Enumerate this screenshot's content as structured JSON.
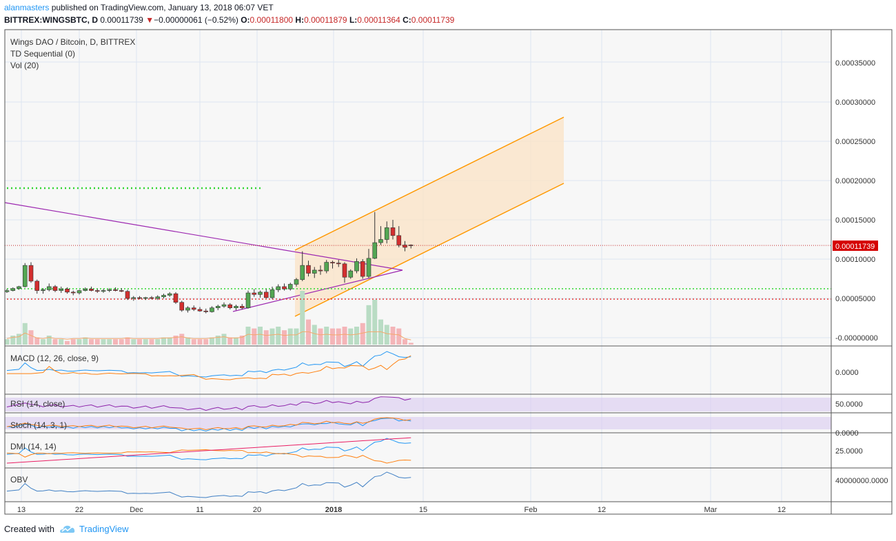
{
  "header": {
    "user": "alanmasters",
    "published": " published on TradingView.com, January 13, 2018 06:07 VET",
    "symbol": "BITTREX:WINGSBTC, D",
    "last": "0.00011739",
    "change_arrow": "▼",
    "change": "−0.00000061 (−0.52%)",
    "o_label": "O:",
    "o": "0.00011800",
    "h_label": "H:",
    "h": "0.00011879",
    "l_label": "L:",
    "l": "0.00011364",
    "c_label": "C:",
    "c": "0.00011739"
  },
  "legend": {
    "main": "Wings DAO / Bitcoin, D, BITTREX",
    "td": "TD Sequential (0)",
    "vol": "Vol (20)"
  },
  "panes": {
    "macd": "MACD (12, 26, close, 9)",
    "rsi": "RSI (14, close)",
    "stoch": "Stoch (14, 3, 1)",
    "dmi": "DMI (14, 14)",
    "obv": "OBV"
  },
  "price_axis": {
    "ticks": [
      "0.00035000",
      "0.00030000",
      "0.00025000",
      "0.00020000",
      "0.00015000",
      "0.00010000",
      "0.00005000",
      "-0.00000000"
    ],
    "last_label": "0.00011739"
  },
  "indicator_axis": {
    "macd": "0.0000",
    "rsi": "50.0000",
    "stoch": "0.0000",
    "dmi": "25.0000",
    "obv": "40000000.0000"
  },
  "time_axis": [
    "13",
    "22",
    "Dec",
    "11",
    "20",
    "2018",
    "15",
    "Feb",
    "12",
    "Mar",
    "12"
  ],
  "colors": {
    "up": "#53a653",
    "down": "#d32f2f",
    "channel": "#ff9800",
    "triangle": "#9c27b0",
    "green_dots": "#2fd62f",
    "red_dots": "#e53935",
    "vol_up": "#b9dcc4",
    "vol_down": "#f4b5b8"
  },
  "chart_data": {
    "type": "candlestick",
    "price_range": [
      -5e-06,
      0.0004
    ],
    "last_price": 0.00011739,
    "candles": [
      [
        5.85e-05,
        6.2e-05,
        5.7e-05,
        6e-05
      ],
      [
        6e-05,
        6.4e-05,
        5.9e-05,
        6.25e-05
      ],
      [
        6.25e-05,
        6.6e-05,
        6.1e-05,
        6.5e-05
      ],
      [
        6.5e-05,
        9.5e-05,
        6.4e-05,
        9.2e-05
      ],
      [
        9.2e-05,
        9.6e-05,
        7e-05,
        7.2e-05
      ],
      [
        7.2e-05,
        7.4e-05,
        5.6e-05,
        6e-05
      ],
      [
        6e-05,
        6.3e-05,
        5.6e-05,
        6.1e-05
      ],
      [
        6.1e-05,
        6.9e-05,
        5.9e-05,
        6.5e-05
      ],
      [
        6.5e-05,
        6.7e-05,
        5.8e-05,
        6e-05
      ],
      [
        6e-05,
        6.5e-05,
        5.7e-05,
        6.2e-05
      ],
      [
        6.2e-05,
        6.4e-05,
        5.6e-05,
        5.8e-05
      ],
      [
        5.8e-05,
        6e-05,
        5.4e-05,
        5.7e-05
      ],
      [
        5.7e-05,
        6.1e-05,
        5.5e-05,
        6e-05
      ],
      [
        6e-05,
        6.4e-05,
        5.9e-05,
        6.2e-05
      ],
      [
        6.2e-05,
        6.5e-05,
        5.9e-05,
        6e-05
      ],
      [
        6e-05,
        6.2e-05,
        5.7e-05,
        5.9e-05
      ],
      [
        5.9e-05,
        6.2e-05,
        5.7e-05,
        6e-05
      ],
      [
        6e-05,
        6.3e-05,
        5.8e-05,
        6.1e-05
      ],
      [
        6.1e-05,
        6.4e-05,
        5.9e-05,
        6e-05
      ],
      [
        6e-05,
        6.3e-05,
        5.8e-05,
        5.9e-05
      ],
      [
        5.9e-05,
        6.1e-05,
        4.8e-05,
        5e-05
      ],
      [
        5e-05,
        5.3e-05,
        4.7e-05,
        5.1e-05
      ],
      [
        5.1e-05,
        5.3e-05,
        4.9e-05,
        5e-05
      ],
      [
        5e-05,
        5.2e-05,
        4.8e-05,
        5.1e-05
      ],
      [
        5.1e-05,
        5.3e-05,
        4.9e-05,
        5e-05
      ],
      [
        5e-05,
        5.4e-05,
        4.8e-05,
        5.2e-05
      ],
      [
        5.2e-05,
        5.6e-05,
        5e-05,
        5.4e-05
      ],
      [
        5.4e-05,
        5.8e-05,
        5.2e-05,
        5.6e-05
      ],
      [
        5.6e-05,
        5.8e-05,
        4.3e-05,
        4.5e-05
      ],
      [
        4.5e-05,
        4.7e-05,
        3.3e-05,
        3.5e-05
      ],
      [
        3.5e-05,
        4e-05,
        3.2e-05,
        3.8e-05
      ],
      [
        3.8e-05,
        4.1e-05,
        3.4e-05,
        3.6e-05
      ],
      [
        3.6e-05,
        3.9e-05,
        3.3e-05,
        3.4e-05
      ],
      [
        3.4e-05,
        3.7e-05,
        3.1e-05,
        3.3e-05
      ],
      [
        3.3e-05,
        4e-05,
        3.2e-05,
        3.8e-05
      ],
      [
        3.8e-05,
        4.2e-05,
        3.5e-05,
        4e-05
      ],
      [
        4e-05,
        4.5e-05,
        3.8e-05,
        4.2e-05
      ],
      [
        4.2e-05,
        4.4e-05,
        3.6e-05,
        3.8e-05
      ],
      [
        3.8e-05,
        4.2e-05,
        3.5e-05,
        4e-05
      ],
      [
        4e-05,
        4.3e-05,
        3.6e-05,
        3.8e-05
      ],
      [
        3.8e-05,
        6e-05,
        3.7e-05,
        5.7e-05
      ],
      [
        5.7e-05,
        6.2e-05,
        5.2e-05,
        5.5e-05
      ],
      [
        5.5e-05,
        6e-05,
        5.1e-05,
        5.8e-05
      ],
      [
        5.8e-05,
        6.2e-05,
        5e-05,
        5.1e-05
      ],
      [
        5.1e-05,
        6.5e-05,
        4.9e-05,
        6.1e-05
      ],
      [
        6.1e-05,
        6.8e-05,
        5.8e-05,
        6.5e-05
      ],
      [
        6.5e-05,
        6.9e-05,
        6e-05,
        6.2e-05
      ],
      [
        6.2e-05,
        7e-05,
        6e-05,
        6.8e-05
      ],
      [
        6.8e-05,
        7.6e-05,
        6.5e-05,
        7.4e-05
      ],
      [
        7.4e-05,
        0.00011,
        7.2e-05,
        9.2e-05
      ],
      [
        9.2e-05,
        9.8e-05,
        7.8e-05,
        8.2e-05
      ],
      [
        8.2e-05,
        9e-05,
        7.6e-05,
        8.6e-05
      ],
      [
        8.6e-05,
        9.2e-05,
        8e-05,
        8.5e-05
      ],
      [
        8.5e-05,
        9.9e-05,
        8.2e-05,
        9.6e-05
      ],
      [
        9.6e-05,
        9.8e-05,
        8.8e-05,
        9.5e-05
      ],
      [
        9.5e-05,
        9.9e-05,
        9e-05,
        9.4e-05
      ],
      [
        9.4e-05,
        9.6e-05,
        7e-05,
        7.7e-05
      ],
      [
        7.7e-05,
        8.7e-05,
        7.5e-05,
        8.5e-05
      ],
      [
        8.5e-05,
        0.000101,
        8.2e-05,
        9.7e-05
      ],
      [
        9.7e-05,
        0.0001,
        7.5e-05,
        7.8e-05
      ],
      [
        7.8e-05,
        0.000113,
        7.6e-05,
        0.000101
      ],
      [
        0.000101,
        0.00016,
        0.0001,
        0.000121
      ],
      [
        0.000121,
        0.000142,
        0.000118,
        0.000125
      ],
      [
        0.000125,
        0.000148,
        0.00012,
        0.00014
      ],
      [
        0.00014,
        0.00015,
        0.000125,
        0.00013
      ],
      [
        0.00013,
        0.000142,
        0.000115,
        0.000118
      ],
      [
        0.000118,
        0.000123,
        0.00011,
        0.000115
      ],
      [
        0.000118,
        0.0001188,
        0.0001136,
        0.0001174
      ]
    ],
    "volume": [
      3,
      5,
      6,
      12,
      8,
      4,
      3,
      5,
      3,
      3,
      2,
      3,
      3,
      4,
      3,
      3,
      3,
      3,
      3,
      3,
      4,
      3,
      3,
      3,
      3,
      3,
      4,
      4,
      5,
      6,
      4,
      3,
      3,
      3,
      4,
      5,
      6,
      4,
      4,
      5,
      10,
      9,
      10,
      8,
      9,
      10,
      8,
      9,
      9,
      30,
      14,
      11,
      9,
      10,
      9,
      9,
      10,
      9,
      10,
      12,
      22,
      25,
      14,
      11,
      10,
      9,
      3,
      1
    ]
  }
}
